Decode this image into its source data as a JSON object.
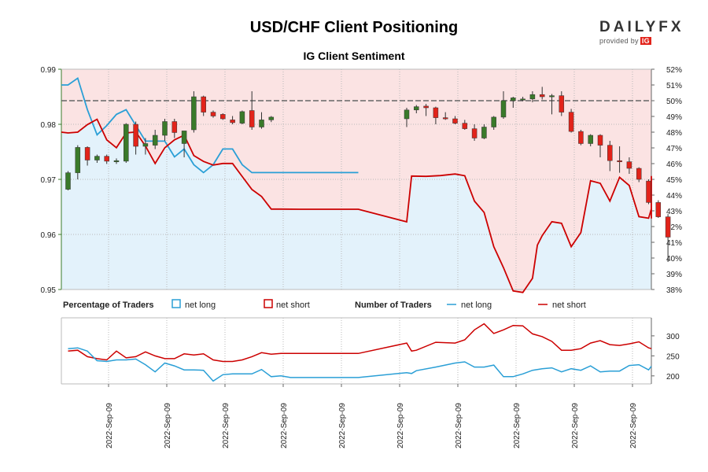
{
  "chart_data": [
    {
      "type": "candlestick",
      "title": "USD/CHF Client Positioning",
      "subtitle": "IG Client Sentiment",
      "ylim_left": [
        0.95,
        0.99
      ],
      "ylim_right": [
        38,
        52
      ],
      "y_ticks_left": [
        "0.95",
        "0.96",
        "0.97",
        "0.98",
        "0.99"
      ],
      "y_ticks_right": [
        "38%",
        "39%",
        "40%",
        "41%",
        "42%",
        "43%",
        "44%",
        "45%",
        "46%",
        "47%",
        "48%",
        "49%",
        "50%",
        "51%",
        "52%"
      ],
      "reference_line": 50,
      "colors": {
        "up": "#3a7a2a",
        "down": "#e2231a",
        "net_long": "#2a9fd6",
        "net_short": "#cc0000",
        "long_zone": "#e3f2fb",
        "short_zone": "#fbe3e3"
      },
      "candles": [
        [
          0.9682,
          0.9715,
          0.968,
          0.9712
        ],
        [
          0.9712,
          0.9762,
          0.97,
          0.9758
        ],
        [
          0.9758,
          0.976,
          0.9725,
          0.9735
        ],
        [
          0.9735,
          0.9745,
          0.973,
          0.9742
        ],
        [
          0.9742,
          0.9745,
          0.9728,
          0.9733
        ],
        [
          0.9733,
          0.9738,
          0.9728,
          0.9734
        ],
        [
          0.9733,
          0.9802,
          0.973,
          0.98
        ],
        [
          0.98,
          0.9805,
          0.9745,
          0.976
        ],
        [
          0.976,
          0.9775,
          0.9745,
          0.9765
        ],
        [
          0.9762,
          0.979,
          0.9755,
          0.978
        ],
        [
          0.978,
          0.981,
          0.977,
          0.9805
        ],
        [
          0.9805,
          0.981,
          0.9775,
          0.9785
        ],
        [
          0.9765,
          0.9788,
          0.974,
          0.9788
        ],
        [
          0.979,
          0.986,
          0.9785,
          0.985
        ],
        [
          0.985,
          0.9852,
          0.9815,
          0.9822
        ],
        [
          0.9822,
          0.9825,
          0.9812,
          0.9815
        ],
        [
          0.9818,
          0.982,
          0.9808,
          0.981
        ],
        [
          0.9808,
          0.9815,
          0.98,
          0.9803
        ],
        [
          0.9802,
          0.9825,
          0.98,
          0.9823
        ],
        [
          0.9825,
          0.986,
          0.979,
          0.9795
        ],
        [
          0.9795,
          0.9822,
          0.9792,
          0.9808
        ],
        [
          0.9808,
          0.9815,
          0.9804,
          0.9813
        ],
        [
          0.981,
          0.983,
          0.9795,
          0.9826
        ],
        [
          0.9826,
          0.9835,
          0.982,
          0.9832
        ],
        [
          0.9833,
          0.9837,
          0.9815,
          0.983
        ],
        [
          0.983,
          0.9832,
          0.98,
          0.9812
        ],
        [
          0.9812,
          0.9822,
          0.9808,
          0.981
        ],
        [
          0.981,
          0.9815,
          0.98,
          0.9802
        ],
        [
          0.9802,
          0.9808,
          0.979,
          0.9792
        ],
        [
          0.9792,
          0.98,
          0.977,
          0.9775
        ],
        [
          0.9775,
          0.98,
          0.9773,
          0.9795
        ],
        [
          0.9795,
          0.9815,
          0.979,
          0.9813
        ],
        [
          0.9813,
          0.986,
          0.981,
          0.9843
        ],
        [
          0.9843,
          0.985,
          0.983,
          0.9848
        ],
        [
          0.9845,
          0.985,
          0.9842,
          0.9846
        ],
        [
          0.9846,
          0.986,
          0.984,
          0.9854
        ],
        [
          0.9854,
          0.9868,
          0.9845,
          0.985
        ],
        [
          0.985,
          0.9855,
          0.9818,
          0.9852
        ],
        [
          0.9852,
          0.986,
          0.9815,
          0.9822
        ],
        [
          0.9822,
          0.9828,
          0.9785,
          0.9787
        ],
        [
          0.9787,
          0.979,
          0.9762,
          0.9765
        ],
        [
          0.9765,
          0.9782,
          0.976,
          0.978
        ],
        [
          0.978,
          0.9782,
          0.974,
          0.9762
        ],
        [
          0.9762,
          0.977,
          0.9715,
          0.9734
        ],
        [
          0.9734,
          0.976,
          0.9712,
          0.9732
        ],
        [
          0.9732,
          0.974,
          0.971,
          0.972
        ],
        [
          0.972,
          0.9722,
          0.9695,
          0.97
        ],
        [
          0.9697,
          0.97,
          0.9655,
          0.9658
        ],
        [
          0.9658,
          0.9662,
          0.963,
          0.9632
        ],
        [
          0.9632,
          0.9637,
          0.955,
          0.9595
        ]
      ],
      "candle_x": [
        0,
        1,
        2,
        3,
        4,
        5,
        6,
        7,
        8,
        9,
        10,
        11,
        12,
        13,
        14,
        15,
        16,
        17,
        18,
        19,
        20,
        21,
        35,
        36,
        37,
        38,
        39,
        40,
        41,
        42,
        43,
        44,
        45,
        46,
        47,
        48,
        49,
        50,
        51,
        52,
        53,
        54,
        55,
        56,
        57,
        58,
        59,
        60,
        61,
        62
      ],
      "net_long_pct_series": [
        [
          -1,
          48.0
        ],
        [
          0,
          47.95
        ],
        [
          1,
          48.0
        ],
        [
          2,
          48.48
        ],
        [
          3,
          48.82
        ],
        [
          4,
          47.51
        ],
        [
          5,
          47.01
        ],
        [
          6,
          47.95
        ],
        [
          7,
          48.01
        ],
        [
          8,
          47.12
        ],
        [
          9,
          46.01
        ],
        [
          10,
          47.01
        ],
        [
          11,
          47.51
        ],
        [
          12,
          47.81
        ],
        [
          13,
          46.51
        ],
        [
          14,
          46.14
        ],
        [
          15,
          45.91
        ],
        [
          16,
          46.01
        ],
        [
          17,
          46.01
        ],
        [
          18,
          45.18
        ],
        [
          19,
          44.36
        ],
        [
          20,
          43.91
        ],
        [
          21,
          43.11
        ],
        [
          22,
          43.11
        ],
        [
          24,
          43.1
        ],
        [
          30,
          43.1
        ],
        [
          35,
          42.3
        ],
        [
          35.5,
          45.21
        ],
        [
          37,
          45.19
        ],
        [
          38.5,
          45.24
        ],
        [
          40,
          45.34
        ],
        [
          41,
          45.23
        ],
        [
          42,
          43.62
        ],
        [
          43,
          42.9
        ],
        [
          44,
          40.72
        ],
        [
          45,
          39.39
        ],
        [
          46,
          37.91
        ],
        [
          47,
          37.81
        ],
        [
          48,
          38.71
        ],
        [
          48.5,
          40.82
        ],
        [
          49,
          41.42
        ],
        [
          50,
          42.31
        ],
        [
          51,
          42.21
        ],
        [
          52,
          40.72
        ],
        [
          53,
          41.62
        ],
        [
          54,
          44.91
        ],
        [
          55,
          44.75
        ],
        [
          56,
          43.62
        ],
        [
          57,
          45.13
        ],
        [
          58,
          44.61
        ],
        [
          59,
          42.63
        ],
        [
          60,
          42.53
        ],
        [
          61,
          43.12
        ],
        [
          62,
          43.62
        ],
        [
          63,
          43.11
        ],
        [
          64,
          42.61
        ],
        [
          65,
          42.51
        ],
        [
          66,
          43.31
        ],
        [
          67,
          44.31
        ],
        [
          68,
          44.91
        ],
        [
          69,
          44.41
        ],
        [
          70,
          44.61
        ],
        [
          71,
          45.21
        ]
      ],
      "net_long_series": [
        [
          -1,
          51.0
        ],
        [
          0,
          51.0
        ],
        [
          1,
          51.43
        ],
        [
          2,
          49.43
        ],
        [
          3,
          47.83
        ],
        [
          4,
          48.42
        ],
        [
          5,
          49.13
        ],
        [
          6,
          49.43
        ],
        [
          7,
          48.43
        ],
        [
          8,
          47.43
        ],
        [
          9,
          47.43
        ],
        [
          10,
          47.43
        ],
        [
          11,
          46.43
        ],
        [
          12,
          46.93
        ],
        [
          13,
          45.93
        ],
        [
          14,
          45.43
        ],
        [
          15,
          45.93
        ],
        [
          16,
          46.93
        ],
        [
          17,
          46.93
        ],
        [
          18,
          45.93
        ],
        [
          19,
          45.43
        ],
        [
          20,
          45.43
        ],
        [
          21,
          45.43
        ],
        [
          22,
          45.43
        ],
        [
          30,
          45.43
        ]
      ],
      "percentage_of_traders": {
        "label": "Percentage of Traders",
        "net_long": "net long",
        "net_short": "net short"
      },
      "number_of_traders": {
        "label": "Number of Traders",
        "net_long": "net long",
        "net_short": "net short",
        "ylim": [
          180,
          345
        ],
        "y_ticks": [
          "200",
          "250",
          "300"
        ],
        "net_long_series": [
          [
            0,
            268
          ],
          [
            1,
            270
          ],
          [
            2,
            262
          ],
          [
            3,
            238
          ],
          [
            4,
            236
          ],
          [
            5,
            240
          ],
          [
            6,
            240
          ],
          [
            7,
            242
          ],
          [
            8,
            228
          ],
          [
            9,
            210
          ],
          [
            10,
            232
          ],
          [
            11,
            225
          ],
          [
            12,
            215
          ],
          [
            13,
            215
          ],
          [
            14,
            214
          ],
          [
            15,
            187
          ],
          [
            16,
            203
          ],
          [
            17,
            205
          ],
          [
            18,
            205
          ],
          [
            19,
            205
          ],
          [
            20,
            216
          ],
          [
            21,
            198
          ],
          [
            22,
            200
          ],
          [
            23,
            196
          ],
          [
            24,
            196
          ],
          [
            30,
            196
          ],
          [
            35,
            208
          ],
          [
            35.5,
            206
          ],
          [
            36,
            213
          ],
          [
            38,
            222
          ],
          [
            40,
            232
          ],
          [
            41,
            235
          ],
          [
            42,
            222
          ],
          [
            43,
            222
          ],
          [
            44,
            227
          ],
          [
            45,
            198
          ],
          [
            46,
            198
          ],
          [
            47,
            205
          ],
          [
            48,
            214
          ],
          [
            49,
            218
          ],
          [
            50,
            220
          ],
          [
            51,
            210
          ],
          [
            52,
            218
          ],
          [
            53,
            214
          ],
          [
            54,
            225
          ],
          [
            55,
            210
          ],
          [
            56,
            212
          ],
          [
            57,
            212
          ],
          [
            58,
            226
          ],
          [
            59,
            228
          ],
          [
            60,
            215
          ],
          [
            61,
            224
          ]
        ],
        "net_short_series": [
          [
            0,
            262
          ],
          [
            1,
            264
          ],
          [
            2,
            248
          ],
          [
            3,
            243
          ],
          [
            4,
            240
          ],
          [
            5,
            262
          ],
          [
            6,
            245
          ],
          [
            7,
            248
          ],
          [
            8,
            260
          ],
          [
            9,
            250
          ],
          [
            10,
            243
          ],
          [
            11,
            243
          ],
          [
            12,
            255
          ],
          [
            13,
            252
          ],
          [
            14,
            255
          ],
          [
            15,
            240
          ],
          [
            16,
            236
          ],
          [
            17,
            236
          ],
          [
            18,
            240
          ],
          [
            19,
            248
          ],
          [
            20,
            258
          ],
          [
            21,
            254
          ],
          [
            22,
            256
          ],
          [
            24,
            256
          ],
          [
            30,
            256
          ],
          [
            35,
            282
          ],
          [
            35.5,
            262
          ],
          [
            36,
            264
          ],
          [
            38,
            284
          ],
          [
            40,
            282
          ],
          [
            41,
            290
          ],
          [
            42,
            315
          ],
          [
            43,
            330
          ],
          [
            44,
            306
          ],
          [
            45,
            315
          ],
          [
            46,
            326
          ],
          [
            47,
            325
          ],
          [
            48,
            305
          ],
          [
            49,
            298
          ],
          [
            50,
            286
          ],
          [
            51,
            264
          ],
          [
            52,
            264
          ],
          [
            53,
            268
          ],
          [
            54,
            282
          ],
          [
            55,
            288
          ],
          [
            56,
            278
          ],
          [
            57,
            276
          ],
          [
            58,
            280
          ],
          [
            59,
            285
          ],
          [
            60,
            270
          ],
          [
            61,
            268
          ]
        ]
      },
      "x_tick_labels": [
        "2022-Sep-09",
        "2022-Sep-09",
        "2022-Sep-09",
        "2022-Sep-09",
        "2022-Sep-09",
        "2022-Sep-09",
        "2022-Sep-09",
        "2022-Sep-09",
        "2022-Sep-09",
        "2022-Sep-09"
      ]
    }
  ],
  "logo": {
    "brand": "DAILYFX",
    "provided_by": "provided by",
    "ig": "IG"
  }
}
